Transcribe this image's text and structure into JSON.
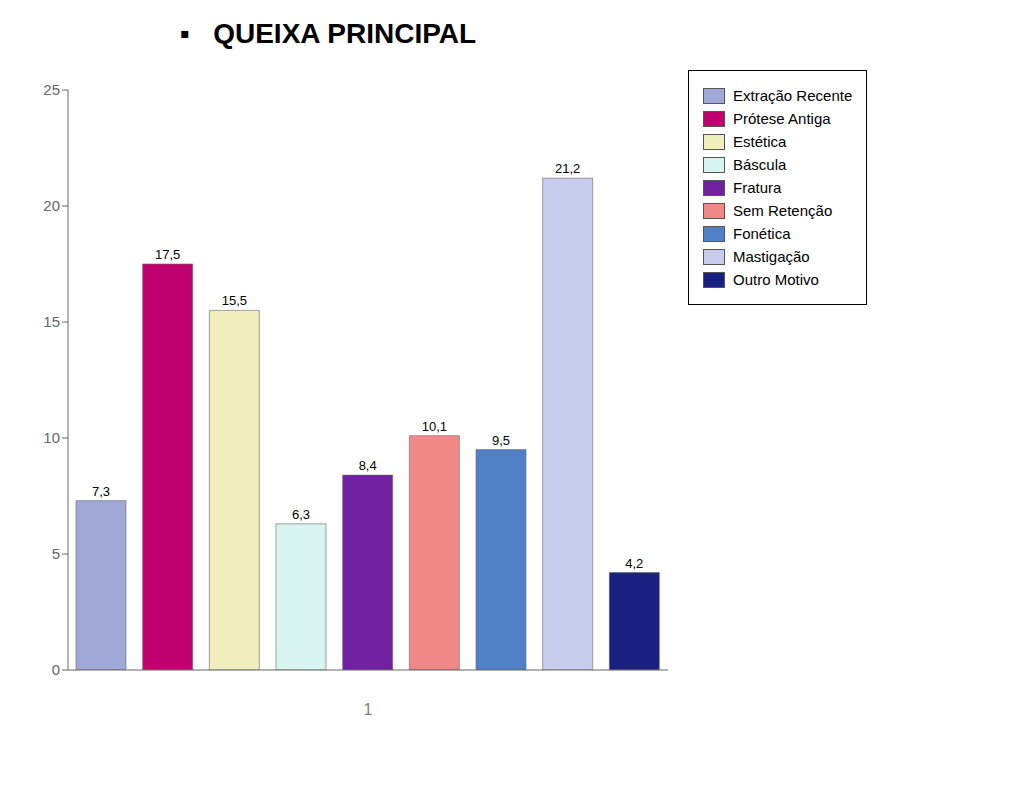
{
  "chart_data": {
    "type": "bar",
    "title": "▪   QUEIXA PRINCIPAL",
    "categories": [
      "Extração Recente",
      "Prótese Antiga",
      "Estética",
      "Báscula",
      "Fratura",
      "Sem Retenção",
      "Fonética",
      "Mastigação",
      "Outro Motivo"
    ],
    "values": [
      7.3,
      17.5,
      15.5,
      6.3,
      8.4,
      10.1,
      9.5,
      21.2,
      4.2
    ],
    "value_labels": [
      "7,3",
      "17,5",
      "15,5",
      "6,3",
      "8,4",
      "10,1",
      "9,5",
      "21,2",
      "4,2"
    ],
    "colors": [
      "#a0a8d8",
      "#c0006e",
      "#f0eebc",
      "#d8f4f0",
      "#7020a0",
      "#f08888",
      "#5080c8",
      "#c8ccec",
      "#1a2080"
    ],
    "xlabel": "1",
    "ylim": [
      0,
      25
    ],
    "yticks": [
      0,
      5,
      10,
      15,
      20,
      25
    ],
    "grid": false,
    "legend": "right",
    "data_labels": true,
    "tick_labels": "y"
  }
}
